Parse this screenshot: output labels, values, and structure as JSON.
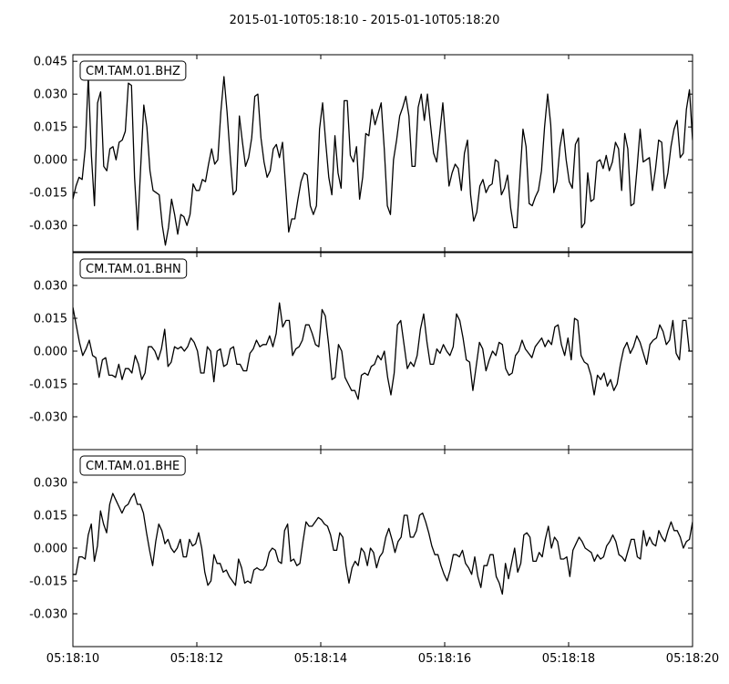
{
  "chart_data": {
    "type": "line",
    "title": "2015-01-10T05:18:10  -  2015-01-10T05:18:20",
    "xlabel": "",
    "ylabel": "",
    "xlim": [
      0,
      10
    ],
    "x_ticks": [
      "05:18:10",
      "05:18:12",
      "05:18:14",
      "05:18:16",
      "05:18:18",
      "05:18:20"
    ],
    "x_tick_values": [
      0,
      2,
      4,
      6,
      8,
      10
    ],
    "grid": false,
    "legend": "none",
    "line_color": "#000000",
    "panels": [
      {
        "label": "CM.TAM.01.BHZ",
        "ylim": [
          -0.042,
          0.048
        ],
        "y_ticks": [
          "-0.030",
          "-0.015",
          "0.000",
          "0.015",
          "0.030",
          "0.045"
        ],
        "y_tick_values": [
          -0.03,
          -0.015,
          0.0,
          0.015,
          0.03,
          0.045
        ],
        "values": [
          -0.018,
          -0.012,
          -0.008,
          -0.009,
          0.005,
          0.038,
          0.002,
          -0.021,
          0.026,
          0.031,
          -0.003,
          -0.005,
          0.005,
          0.006,
          0.0,
          0.008,
          0.009,
          0.013,
          0.035,
          0.034,
          -0.008,
          -0.032,
          -0.003,
          0.025,
          0.015,
          -0.005,
          -0.014,
          -0.015,
          -0.016,
          -0.03,
          -0.039,
          -0.031,
          -0.018,
          -0.025,
          -0.034,
          -0.025,
          -0.026,
          -0.03,
          -0.025,
          -0.011,
          -0.014,
          -0.014,
          -0.009,
          -0.01,
          -0.002,
          0.005,
          -0.002,
          0.0,
          0.022,
          0.038,
          0.022,
          0.002,
          -0.016,
          -0.014,
          0.02,
          0.008,
          -0.003,
          0.001,
          0.01,
          0.029,
          0.03,
          0.01,
          -0.001,
          -0.008,
          -0.005,
          0.005,
          0.007,
          0.001,
          0.008,
          -0.012,
          -0.033,
          -0.027,
          -0.027,
          -0.018,
          -0.01,
          -0.006,
          -0.007,
          -0.021,
          -0.025,
          -0.021,
          0.014,
          0.026,
          0.008,
          -0.008,
          -0.016,
          0.011,
          -0.006,
          -0.013,
          0.027,
          0.027,
          0.002,
          -0.001,
          0.006,
          -0.018,
          -0.008,
          0.012,
          0.011,
          0.023,
          0.016,
          0.021,
          0.026,
          0.005,
          -0.021,
          -0.025,
          0.0,
          0.009,
          0.02,
          0.024,
          0.029,
          0.02,
          -0.003,
          -0.003,
          0.024,
          0.03,
          0.018,
          0.03,
          0.016,
          0.003,
          -0.001,
          0.012,
          0.026,
          0.008,
          -0.012,
          -0.006,
          -0.002,
          -0.004,
          -0.014,
          0.003,
          0.009,
          -0.016,
          -0.028,
          -0.024,
          -0.012,
          -0.009,
          -0.015,
          -0.012,
          -0.011,
          0.0,
          -0.001,
          -0.016,
          -0.013,
          -0.007,
          -0.022,
          -0.031,
          -0.031,
          -0.008,
          0.014,
          0.006,
          -0.02,
          -0.021,
          -0.017,
          -0.014,
          -0.005,
          0.015,
          0.03,
          0.016,
          -0.015,
          -0.01,
          0.006,
          0.014,
          0.0,
          -0.01,
          -0.013,
          0.007,
          0.01,
          -0.031,
          -0.029,
          -0.006,
          -0.019,
          -0.018,
          -0.001,
          0.0,
          -0.004,
          0.002,
          -0.005,
          -0.001,
          0.008,
          0.005,
          -0.014,
          0.012,
          0.005,
          -0.021,
          -0.02,
          -0.004,
          0.014,
          -0.001,
          0.0,
          0.001,
          -0.014,
          -0.004,
          0.009,
          0.008,
          -0.013,
          -0.006,
          0.006,
          0.014,
          0.018,
          0.001,
          0.003,
          0.023,
          0.032,
          0.009
        ],
        "color": "#000000"
      },
      {
        "label": "CM.TAM.01.BHN",
        "ylim": [
          -0.045,
          0.045
        ],
        "y_ticks": [
          "-0.030",
          "-0.015",
          "0.000",
          "0.015",
          "0.030"
        ],
        "y_tick_values": [
          -0.03,
          -0.015,
          0.0,
          0.015,
          0.03
        ],
        "values": [
          0.02,
          0.012,
          0.004,
          -0.002,
          0.001,
          0.005,
          -0.002,
          -0.003,
          -0.012,
          -0.004,
          -0.003,
          -0.011,
          -0.011,
          -0.012,
          -0.006,
          -0.013,
          -0.008,
          -0.008,
          -0.01,
          -0.002,
          -0.006,
          -0.013,
          -0.01,
          0.002,
          0.002,
          0.0,
          -0.004,
          0.001,
          0.01,
          -0.007,
          -0.005,
          0.002,
          0.001,
          0.002,
          0.0,
          0.002,
          0.006,
          0.004,
          0.0,
          -0.01,
          -0.01,
          0.002,
          0.0,
          -0.014,
          0.0,
          0.001,
          -0.007,
          -0.006,
          0.001,
          0.002,
          -0.006,
          -0.006,
          -0.009,
          -0.009,
          -0.001,
          0.001,
          0.005,
          0.002,
          0.003,
          0.003,
          0.007,
          0.002,
          0.008,
          0.022,
          0.011,
          0.014,
          0.014,
          -0.002,
          0.001,
          0.002,
          0.005,
          0.012,
          0.012,
          0.008,
          0.003,
          0.002,
          0.019,
          0.016,
          0.003,
          -0.013,
          -0.012,
          0.003,
          0.0,
          -0.012,
          -0.015,
          -0.018,
          -0.018,
          -0.022,
          -0.011,
          -0.01,
          -0.011,
          -0.007,
          -0.006,
          -0.002,
          -0.004,
          0.0,
          -0.012,
          -0.02,
          -0.01,
          0.012,
          0.014,
          0.003,
          -0.008,
          -0.005,
          -0.007,
          -0.002,
          0.01,
          0.017,
          0.004,
          -0.006,
          -0.006,
          0.001,
          -0.001,
          0.003,
          0.0,
          -0.002,
          0.002,
          0.017,
          0.014,
          0.006,
          -0.004,
          -0.005,
          -0.018,
          -0.007,
          0.004,
          0.001,
          -0.009,
          -0.004,
          0.0,
          -0.002,
          0.004,
          0.003,
          -0.008,
          -0.011,
          -0.01,
          -0.002,
          0.0,
          0.005,
          0.001,
          -0.001,
          -0.003,
          0.002,
          0.004,
          0.006,
          0.002,
          0.005,
          0.003,
          0.011,
          0.012,
          0.003,
          -0.002,
          0.006,
          -0.004,
          0.015,
          0.014,
          -0.002,
          -0.005,
          -0.006,
          -0.011,
          -0.02,
          -0.011,
          -0.013,
          -0.01,
          -0.016,
          -0.013,
          -0.018,
          -0.015,
          -0.006,
          0.001,
          0.004,
          -0.001,
          0.002,
          0.007,
          0.004,
          -0.001,
          -0.006,
          0.003,
          0.005,
          0.006,
          0.012,
          0.009,
          0.003,
          0.005,
          0.014,
          -0.001,
          -0.004,
          0.014,
          0.014,
          0.0,
          0.0
        ]
      },
      {
        "label": "CM.TAM.01.BHE",
        "ylim": [
          -0.045,
          0.045
        ],
        "y_ticks": [
          "-0.030",
          "-0.015",
          "0.000",
          "0.015",
          "0.030"
        ],
        "y_tick_values": [
          -0.03,
          -0.015,
          0.0,
          0.015,
          0.03
        ],
        "values": [
          -0.012,
          -0.012,
          -0.004,
          -0.004,
          -0.005,
          0.006,
          0.011,
          -0.006,
          0.001,
          0.017,
          0.011,
          0.007,
          0.02,
          0.025,
          0.022,
          0.019,
          0.016,
          0.019,
          0.02,
          0.023,
          0.025,
          0.02,
          0.02,
          0.016,
          0.007,
          -0.001,
          -0.008,
          0.003,
          0.011,
          0.008,
          0.002,
          0.004,
          0.0,
          -0.002,
          0.0,
          0.004,
          -0.004,
          -0.004,
          0.004,
          0.001,
          0.002,
          0.007,
          0.0,
          -0.011,
          -0.017,
          -0.015,
          -0.003,
          -0.007,
          -0.007,
          -0.011,
          -0.01,
          -0.013,
          -0.015,
          -0.017,
          -0.005,
          -0.009,
          -0.016,
          -0.015,
          -0.016,
          -0.01,
          -0.009,
          -0.01,
          -0.01,
          -0.008,
          -0.002,
          0.0,
          -0.001,
          -0.006,
          -0.007,
          0.008,
          0.011,
          -0.006,
          -0.005,
          -0.008,
          -0.007,
          0.003,
          0.012,
          0.01,
          0.01,
          0.012,
          0.014,
          0.013,
          0.011,
          0.01,
          0.006,
          -0.001,
          -0.001,
          0.007,
          0.005,
          -0.008,
          -0.016,
          -0.009,
          -0.006,
          -0.008,
          0.0,
          -0.002,
          -0.008,
          0.0,
          -0.002,
          -0.009,
          -0.004,
          -0.002,
          0.005,
          0.009,
          0.004,
          -0.002,
          0.003,
          0.005,
          0.015,
          0.015,
          0.005,
          0.005,
          0.008,
          0.015,
          0.016,
          0.012,
          0.007,
          0.001,
          -0.003,
          -0.003,
          -0.008,
          -0.012,
          -0.015,
          -0.01,
          -0.003,
          -0.003,
          -0.004,
          -0.001,
          -0.007,
          -0.009,
          -0.012,
          -0.004,
          -0.013,
          -0.018,
          -0.008,
          -0.008,
          -0.003,
          -0.003,
          -0.013,
          -0.016,
          -0.021,
          -0.007,
          -0.014,
          -0.007,
          0.0,
          -0.011,
          -0.007,
          0.006,
          0.007,
          0.005,
          -0.006,
          -0.006,
          -0.002,
          -0.004,
          0.004,
          0.01,
          0.0,
          0.005,
          0.003,
          -0.005,
          -0.005,
          -0.004,
          -0.013,
          -0.001,
          0.002,
          0.005,
          0.003,
          0.0,
          -0.001,
          -0.002,
          -0.006,
          -0.003,
          -0.005,
          -0.004,
          0.001,
          0.003,
          0.006,
          0.003,
          -0.003,
          -0.004,
          -0.006,
          -0.001,
          0.004,
          0.004,
          -0.004,
          -0.005,
          0.008,
          0.001,
          0.005,
          0.002,
          0.001,
          0.008,
          0.005,
          0.003,
          0.008,
          0.012,
          0.008,
          0.008,
          0.005,
          0.0,
          0.003,
          0.004,
          0.012
        ]
      }
    ]
  }
}
